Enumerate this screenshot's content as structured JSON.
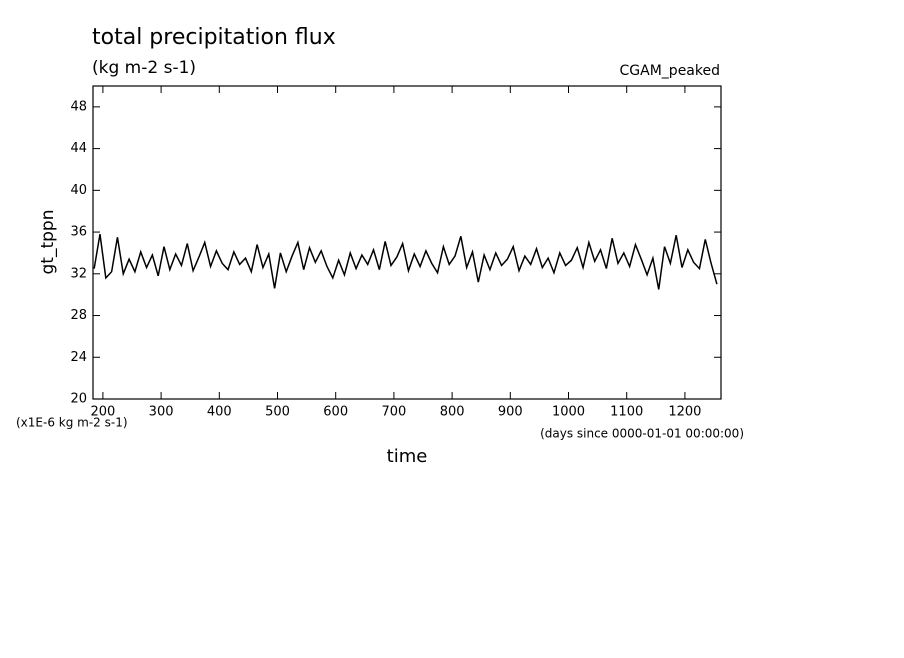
{
  "chart_data": {
    "type": "line",
    "title": "total precipitation flux",
    "subtitle": "(kg m-2 s-1)",
    "annotation": "CGAM_peaked",
    "ylabel": "gt_tppn",
    "yunit": "(x1E-6 kg m-2 s-1)",
    "xlabel": "time",
    "xunit": "(days since 0000-01-01 00:00:00)",
    "x": [
      185,
      195,
      205,
      215,
      225,
      235,
      245,
      255,
      265,
      275,
      285,
      295,
      305,
      315,
      325,
      335,
      345,
      355,
      365,
      375,
      385,
      395,
      405,
      415,
      425,
      435,
      445,
      455,
      465,
      475,
      485,
      495,
      505,
      515,
      525,
      535,
      545,
      555,
      565,
      575,
      585,
      595,
      605,
      615,
      625,
      635,
      645,
      655,
      665,
      675,
      685,
      695,
      705,
      715,
      725,
      735,
      745,
      755,
      765,
      775,
      785,
      795,
      805,
      815,
      825,
      835,
      845,
      855,
      865,
      875,
      885,
      895,
      905,
      915,
      925,
      935,
      945,
      955,
      965,
      975,
      985,
      995,
      1005,
      1015,
      1025,
      1035,
      1045,
      1055,
      1065,
      1075,
      1085,
      1095,
      1105,
      1115,
      1125,
      1135,
      1145,
      1155,
      1165,
      1175,
      1185,
      1195,
      1205,
      1215,
      1225,
      1235,
      1245,
      1255
    ],
    "series": [
      {
        "name": "gt_tppn",
        "color": "#000000",
        "values": [
          32.5,
          35.8,
          31.6,
          32.2,
          35.5,
          32.0,
          33.4,
          32.2,
          34.1,
          32.6,
          33.8,
          31.8,
          34.6,
          32.4,
          33.9,
          32.8,
          34.9,
          32.3,
          33.6,
          35.0,
          32.7,
          34.2,
          33.0,
          32.4,
          34.1,
          32.9,
          33.5,
          32.2,
          34.8,
          32.6,
          33.9,
          30.6,
          34.0,
          32.2,
          33.7,
          35.0,
          32.4,
          34.5,
          33.1,
          34.2,
          32.7,
          31.6,
          33.3,
          31.9,
          34.0,
          32.5,
          33.8,
          32.9,
          34.3,
          32.4,
          35.1,
          32.8,
          33.6,
          34.9,
          32.3,
          33.9,
          32.7,
          34.2,
          33.0,
          32.1,
          34.6,
          32.9,
          33.7,
          35.6,
          32.6,
          34.1,
          31.2,
          33.8,
          32.4,
          34.0,
          32.8,
          33.4,
          34.6,
          32.3,
          33.7,
          32.9,
          34.4,
          32.6,
          33.5,
          32.1,
          34.0,
          32.8,
          33.3,
          34.5,
          32.6,
          35.0,
          33.2,
          34.3,
          32.5,
          35.4,
          33.0,
          34.0,
          32.7,
          34.8,
          33.4,
          31.9,
          33.5,
          30.5,
          34.6,
          33.0,
          35.7,
          32.6,
          34.3,
          33.1,
          32.5,
          35.3,
          33.0,
          31.0
        ]
      }
    ],
    "xlim": [
      183,
      1262
    ],
    "xticks": [
      200,
      300,
      400,
      500,
      600,
      700,
      800,
      900,
      1000,
      1100,
      1200
    ],
    "ylim": [
      20,
      50
    ],
    "yticks": [
      20,
      24,
      28,
      32,
      36,
      40,
      44,
      48
    ]
  }
}
